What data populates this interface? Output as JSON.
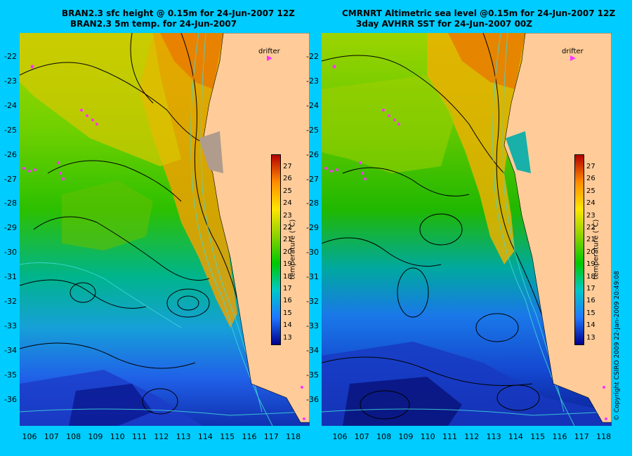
{
  "left_panel": {
    "title1": "BRAN2.3 sfc height @ 0.15m for 24-Jun-2007 12Z",
    "title2": "BRAN2.3 5m temp. for 24-Jun-2007",
    "drifter_label": "drifter",
    "colorbar_label": "temperature (°C)"
  },
  "right_panel": {
    "title1": "CMRNRT Altimetric sea level  @0.15m  for 24-Jun-2007 12Z",
    "title2": "3day AVHRR SST for 24-Jun-2007 00Z",
    "drifter_label": "drifter",
    "colorbar_label": "temperature (°C)"
  },
  "axes": {
    "lat_ticks": [
      "-22",
      "-23",
      "-24",
      "-25",
      "-26",
      "-27",
      "-28",
      "-29",
      "-30",
      "-31",
      "-32",
      "-33",
      "-34",
      "-35",
      "-36"
    ],
    "lon_ticks": [
      "106",
      "107",
      "108",
      "109",
      "110",
      "111",
      "112",
      "113",
      "114",
      "115",
      "116",
      "117",
      "118"
    ]
  },
  "colorbar": {
    "ticks": [
      "27",
      "26",
      "25",
      "24",
      "23",
      "22",
      "21",
      "20",
      "19",
      "18",
      "17",
      "16",
      "15",
      "14",
      "13"
    ],
    "colors": {
      "c13": "#00008b",
      "c15": "#1f78ff",
      "c17": "#00c8c8",
      "c19": "#00c800",
      "c21": "#8cd200",
      "c23": "#ffe600",
      "c25": "#ff8c00",
      "c27": "#b40000"
    }
  },
  "colors": {
    "background": "#00ccff",
    "land": "#ffcc99",
    "drifter": "#ff33ff"
  },
  "copyright": "© Copyright CSIRO 2009   22-Jan-2009 20:49:08"
}
